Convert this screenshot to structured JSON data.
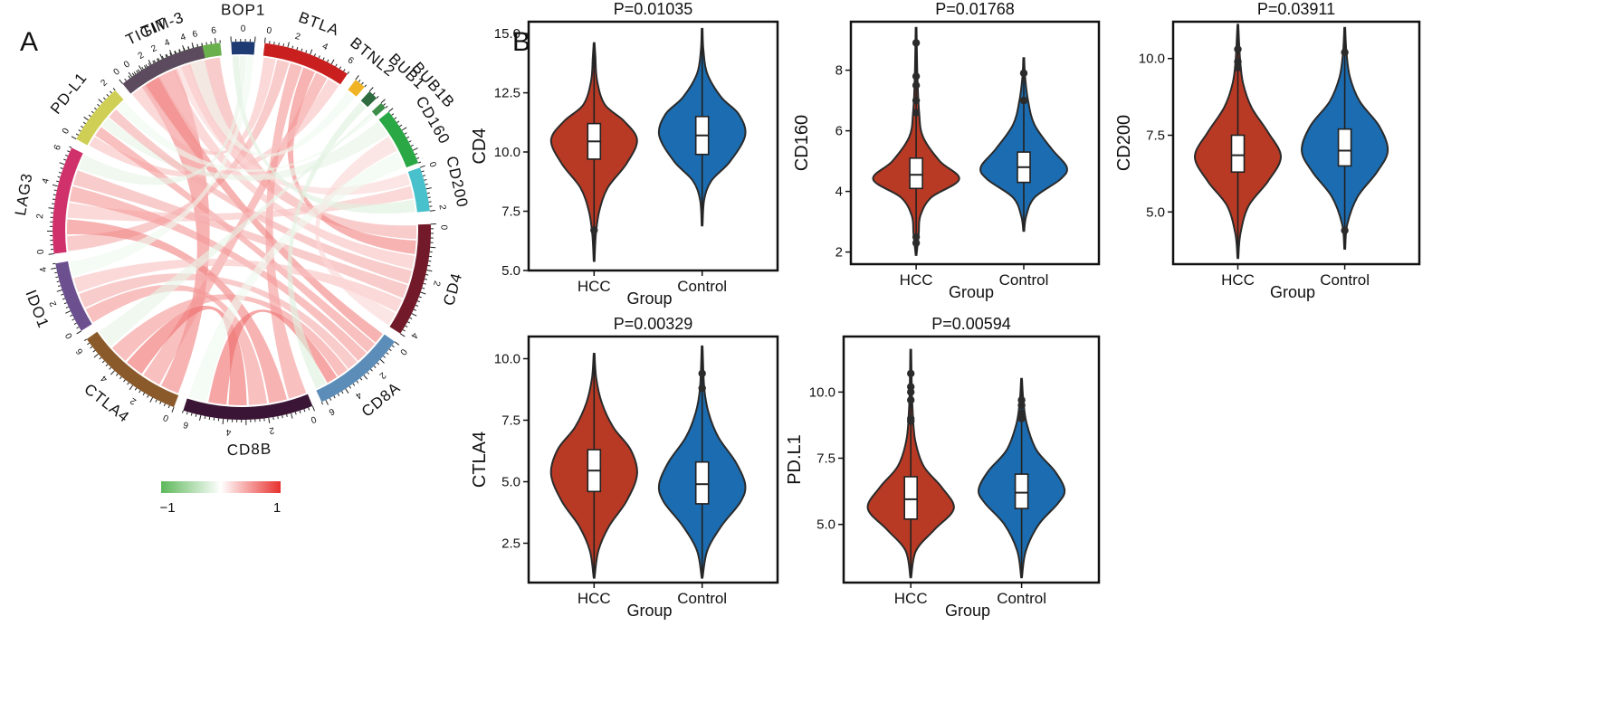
{
  "panel_labels": {
    "a": "A",
    "b": "B"
  },
  "chart_data": [
    {
      "type": "chord",
      "segments": [
        {
          "name": "TIM-3",
          "color": "#6ab04c",
          "ticks": [
            "0",
            "2",
            "4",
            "6"
          ]
        },
        {
          "name": "BOP1",
          "color": "#1f3b73",
          "ticks": [
            "0"
          ]
        },
        {
          "name": "BTLA",
          "color": "#c9201f",
          "ticks": [
            "0",
            "2",
            "4",
            "6"
          ]
        },
        {
          "name": "BTNL2",
          "color": "#f0b323",
          "ticks": []
        },
        {
          "name": "BUB1",
          "color": "#2e6b3f",
          "ticks": []
        },
        {
          "name": "BUB1B",
          "color": "#3c8f48",
          "ticks": []
        },
        {
          "name": "CD160",
          "color": "#2aa845",
          "ticks": []
        },
        {
          "name": "CD200",
          "color": "#48c1cc",
          "ticks": [
            "0",
            "2"
          ]
        },
        {
          "name": "CD4",
          "color": "#721a2a",
          "ticks": [
            "0",
            "2",
            "4"
          ]
        },
        {
          "name": "CD8A",
          "color": "#5b8db8",
          "ticks": [
            "0",
            "2",
            "4",
            "6"
          ]
        },
        {
          "name": "CD8B",
          "color": "#3a1535",
          "ticks": [
            "0",
            "2",
            "4",
            "6"
          ]
        },
        {
          "name": "CTLA4",
          "color": "#8b5a2b",
          "ticks": [
            "0",
            "2",
            "4",
            "6"
          ]
        },
        {
          "name": "IDO1",
          "color": "#6b4f8f",
          "ticks": [
            "0",
            "2",
            "4"
          ]
        },
        {
          "name": "LAG3",
          "color": "#d0316b",
          "ticks": [
            "0",
            "2",
            "4",
            "6"
          ]
        },
        {
          "name": "PD-L1",
          "color": "#cfcf55",
          "ticks": [
            "0",
            "2"
          ]
        },
        {
          "name": "TIGIT",
          "color": "#5c4a5e",
          "ticks": [
            "0",
            "2",
            "4",
            "6"
          ]
        }
      ],
      "legend": {
        "min_label": "−1",
        "max_label": "1",
        "colors": [
          "#5db85a",
          "#ffffff",
          "#e8322f"
        ]
      },
      "links": [
        {
          "from": "TIM-3",
          "to": "CTLA4",
          "corr": 0.6
        },
        {
          "from": "TIM-3",
          "to": "CD4",
          "corr": 0.4
        },
        {
          "from": "BTLA",
          "to": "TIGIT",
          "corr": 0.3
        },
        {
          "from": "BTLA",
          "to": "LAG3",
          "corr": 0.4
        },
        {
          "from": "BTLA",
          "to": "CD8B",
          "corr": 0.5
        },
        {
          "from": "BTLA",
          "to": "CD4",
          "corr": 0.6
        },
        {
          "from": "BTLA",
          "to": "CTLA4",
          "corr": 0.5
        },
        {
          "from": "BTLA",
          "to": "PD-L1",
          "corr": 0.3
        },
        {
          "from": "TIGIT",
          "to": "CD8A",
          "corr": 0.6
        },
        {
          "from": "TIGIT",
          "to": "CD4",
          "corr": 0.3
        },
        {
          "from": "TIGIT",
          "to": "CD200",
          "corr": 0.2
        },
        {
          "from": "PD-L1",
          "to": "CD8A",
          "corr": 0.5
        },
        {
          "from": "PD-L1",
          "to": "CD160",
          "corr": -0.15
        },
        {
          "from": "PD-L1",
          "to": "CD4",
          "corr": 0.4
        },
        {
          "from": "LAG3",
          "to": "CD8B",
          "corr": 0.6
        },
        {
          "from": "LAG3",
          "to": "CD200",
          "corr": 0.3
        },
        {
          "from": "LAG3",
          "to": "CD8A",
          "corr": 0.5
        },
        {
          "from": "LAG3",
          "to": "CD4",
          "corr": 0.4
        },
        {
          "from": "IDO1",
          "to": "CD8B",
          "corr": 0.5
        },
        {
          "from": "IDO1",
          "to": "CD8A",
          "corr": 0.4
        },
        {
          "from": "IDO1",
          "to": "CD4",
          "corr": 0.3
        },
        {
          "from": "CTLA4",
          "to": "CD8B",
          "corr": 0.7
        },
        {
          "from": "CTLA4",
          "to": "CD8A",
          "corr": 0.5
        },
        {
          "from": "CD8A",
          "to": "CD8B",
          "corr": 0.7
        },
        {
          "from": "BOP1",
          "to": "CD200",
          "corr": -0.2
        },
        {
          "from": "BOP1",
          "to": "LAG3",
          "corr": -0.15
        },
        {
          "from": "BOP1",
          "to": "IDO1",
          "corr": -0.1
        },
        {
          "from": "BUB1",
          "to": "CD8A",
          "corr": -0.2
        },
        {
          "from": "BUB1B",
          "to": "CTLA4",
          "corr": -0.15
        },
        {
          "from": "BUB1B",
          "to": "PD-L1",
          "corr": -0.1
        },
        {
          "from": "CD160",
          "to": "CD4",
          "corr": 0.2
        },
        {
          "from": "CD160",
          "to": "CD8B",
          "corr": -0.1
        },
        {
          "from": "BTNL2",
          "to": "TIGIT",
          "corr": -0.1
        }
      ]
    },
    {
      "type": "violin",
      "title": "P=0.01035",
      "ylabel": "CD4",
      "xlabel": "Group",
      "ylim": [
        5.0,
        15.5
      ],
      "yticks": [
        "5.0",
        "7.5",
        "10.0",
        "12.5",
        "15.0"
      ],
      "categories": [
        "HCC",
        "Control"
      ],
      "colors": [
        "#b83a25",
        "#1b6cb0"
      ],
      "groups": [
        {
          "name": "HCC",
          "min": 5.4,
          "max": 14.6,
          "q1": 9.7,
          "median": 10.45,
          "q3": 11.2,
          "profile": [
            [
              5.4,
              0.01
            ],
            [
              6.5,
              0.04
            ],
            [
              7.5,
              0.12
            ],
            [
              8.5,
              0.32
            ],
            [
              9.5,
              0.75
            ],
            [
              10.5,
              1.0
            ],
            [
              11.3,
              0.7
            ],
            [
              12.0,
              0.25
            ],
            [
              13.0,
              0.07
            ],
            [
              14.0,
              0.03
            ],
            [
              14.6,
              0.01
            ]
          ],
          "outliers": [
            6.7
          ]
        },
        {
          "name": "Control",
          "min": 6.9,
          "max": 15.2,
          "q1": 9.9,
          "median": 10.7,
          "q3": 11.5,
          "profile": [
            [
              6.9,
              0.01
            ],
            [
              8.0,
              0.05
            ],
            [
              8.8,
              0.22
            ],
            [
              9.6,
              0.65
            ],
            [
              10.7,
              1.0
            ],
            [
              11.6,
              0.85
            ],
            [
              12.3,
              0.45
            ],
            [
              13.3,
              0.12
            ],
            [
              14.3,
              0.03
            ],
            [
              15.2,
              0.01
            ]
          ],
          "outliers": []
        }
      ]
    },
    {
      "type": "violin",
      "title": "P=0.01768",
      "ylabel": "CD160",
      "xlabel": "Group",
      "ylim": [
        1.6,
        9.6
      ],
      "yticks": [
        "2",
        "4",
        "6",
        "8"
      ],
      "categories": [
        "HCC",
        "Control"
      ],
      "colors": [
        "#b83a25",
        "#1b6cb0"
      ],
      "groups": [
        {
          "name": "HCC",
          "min": 1.9,
          "max": 9.4,
          "q1": 4.1,
          "median": 4.55,
          "q3": 5.1,
          "profile": [
            [
              1.9,
              0.01
            ],
            [
              2.6,
              0.06
            ],
            [
              3.2,
              0.1
            ],
            [
              3.8,
              0.35
            ],
            [
              4.4,
              1.0
            ],
            [
              5.0,
              0.55
            ],
            [
              5.8,
              0.16
            ],
            [
              6.6,
              0.07
            ],
            [
              7.8,
              0.03
            ],
            [
              9.4,
              0.01
            ]
          ],
          "outliers": [
            2.3,
            2.5,
            6.6,
            7.0,
            7.5,
            7.8,
            8.9
          ]
        },
        {
          "name": "Control",
          "min": 2.7,
          "max": 8.4,
          "q1": 4.3,
          "median": 4.8,
          "q3": 5.3,
          "profile": [
            [
              2.7,
              0.01
            ],
            [
              3.2,
              0.06
            ],
            [
              3.8,
              0.25
            ],
            [
              4.4,
              0.85
            ],
            [
              4.8,
              1.0
            ],
            [
              5.4,
              0.65
            ],
            [
              6.2,
              0.25
            ],
            [
              7.0,
              0.1
            ],
            [
              7.8,
              0.03
            ],
            [
              8.4,
              0.01
            ]
          ],
          "outliers": [
            7.0,
            7.9
          ]
        }
      ]
    },
    {
      "type": "violin",
      "title": "P=0.03911",
      "ylabel": "CD200",
      "xlabel": "Group",
      "ylim": [
        3.3,
        11.2
      ],
      "yticks": [
        "5.0",
        "7.5",
        "10.0"
      ],
      "categories": [
        "HCC",
        "Control"
      ],
      "colors": [
        "#b83a25",
        "#1b6cb0"
      ],
      "groups": [
        {
          "name": "HCC",
          "min": 3.5,
          "max": 11.1,
          "q1": 6.3,
          "median": 6.85,
          "q3": 7.5,
          "profile": [
            [
              3.5,
              0.01
            ],
            [
              4.3,
              0.06
            ],
            [
              5.2,
              0.25
            ],
            [
              6.0,
              0.7
            ],
            [
              6.8,
              1.0
            ],
            [
              7.6,
              0.7
            ],
            [
              8.4,
              0.32
            ],
            [
              9.2,
              0.12
            ],
            [
              10.0,
              0.05
            ],
            [
              11.1,
              0.01
            ]
          ],
          "outliers": [
            9.7,
            9.9,
            10.3
          ]
        },
        {
          "name": "Control",
          "min": 3.8,
          "max": 11.0,
          "q1": 6.5,
          "median": 7.0,
          "q3": 7.7,
          "profile": [
            [
              3.8,
              0.01
            ],
            [
              4.6,
              0.06
            ],
            [
              5.5,
              0.3
            ],
            [
              6.3,
              0.75
            ],
            [
              7.0,
              1.0
            ],
            [
              7.8,
              0.8
            ],
            [
              8.6,
              0.35
            ],
            [
              9.4,
              0.12
            ],
            [
              10.2,
              0.04
            ],
            [
              11.0,
              0.01
            ]
          ],
          "outliers": [
            4.4,
            10.2
          ]
        }
      ]
    },
    {
      "type": "violin",
      "title": "P=0.00329",
      "ylabel": "CTLA4",
      "xlabel": "Group",
      "ylim": [
        0.9,
        10.9
      ],
      "yticks": [
        "2.5",
        "5.0",
        "7.5",
        "10.0"
      ],
      "categories": [
        "HCC",
        "Control"
      ],
      "colors": [
        "#b83a25",
        "#1b6cb0"
      ],
      "groups": [
        {
          "name": "HCC",
          "min": 1.1,
          "max": 10.2,
          "q1": 4.6,
          "median": 5.45,
          "q3": 6.3,
          "profile": [
            [
              1.1,
              0.01
            ],
            [
              2.2,
              0.1
            ],
            [
              3.2,
              0.35
            ],
            [
              4.2,
              0.75
            ],
            [
              5.3,
              1.0
            ],
            [
              6.3,
              0.85
            ],
            [
              7.2,
              0.45
            ],
            [
              8.2,
              0.18
            ],
            [
              9.2,
              0.05
            ],
            [
              10.2,
              0.01
            ]
          ],
          "outliers": []
        },
        {
          "name": "Control",
          "min": 1.1,
          "max": 10.5,
          "q1": 4.1,
          "median": 4.9,
          "q3": 5.8,
          "profile": [
            [
              1.1,
              0.01
            ],
            [
              2.2,
              0.12
            ],
            [
              3.2,
              0.45
            ],
            [
              4.2,
              0.9
            ],
            [
              4.9,
              1.0
            ],
            [
              5.8,
              0.78
            ],
            [
              6.8,
              0.38
            ],
            [
              7.8,
              0.15
            ],
            [
              8.8,
              0.05
            ],
            [
              10.5,
              0.01
            ]
          ],
          "outliers": [
            8.8,
            9.4
          ]
        }
      ]
    },
    {
      "type": "violin",
      "title": "P=0.00594",
      "ylabel": "PD.L1",
      "xlabel": "Group",
      "ylim": [
        2.8,
        12.1
      ],
      "yticks": [
        "5.0",
        "7.5",
        "10.0"
      ],
      "categories": [
        "HCC",
        "Control"
      ],
      "colors": [
        "#b83a25",
        "#1b6cb0"
      ],
      "groups": [
        {
          "name": "HCC",
          "min": 3.0,
          "max": 11.6,
          "q1": 5.2,
          "median": 5.95,
          "q3": 6.8,
          "profile": [
            [
              3.0,
              0.01
            ],
            [
              4.0,
              0.12
            ],
            [
              4.8,
              0.55
            ],
            [
              5.6,
              1.0
            ],
            [
              6.4,
              0.72
            ],
            [
              7.2,
              0.3
            ],
            [
              8.2,
              0.1
            ],
            [
              9.4,
              0.04
            ],
            [
              10.5,
              0.02
            ],
            [
              11.6,
              0.01
            ]
          ],
          "outliers": [
            8.9,
            9.0,
            9.7,
            10.0,
            10.2,
            10.7
          ]
        },
        {
          "name": "Control",
          "min": 3.0,
          "max": 10.5,
          "q1": 5.6,
          "median": 6.2,
          "q3": 6.9,
          "profile": [
            [
              3.0,
              0.01
            ],
            [
              4.0,
              0.1
            ],
            [
              5.0,
              0.4
            ],
            [
              5.8,
              0.85
            ],
            [
              6.3,
              1.0
            ],
            [
              7.0,
              0.78
            ],
            [
              7.8,
              0.35
            ],
            [
              8.8,
              0.12
            ],
            [
              9.7,
              0.04
            ],
            [
              10.5,
              0.01
            ]
          ],
          "outliers": [
            9.0,
            9.2,
            9.5,
            9.7
          ]
        }
      ]
    }
  ]
}
